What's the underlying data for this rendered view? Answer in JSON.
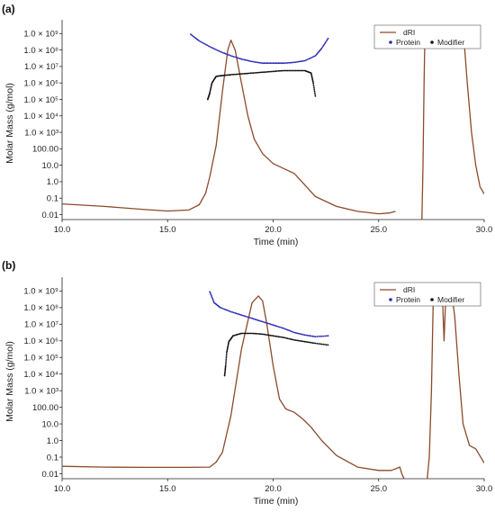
{
  "chart_data": [
    {
      "type": "line",
      "panel_label": "(a)",
      "xlabel": "Time (min)",
      "ylabel": "Molar Mass (g/mol)",
      "xlim": [
        10,
        30
      ],
      "ylim_log10": [
        -2.3,
        9.4
      ],
      "x_ticks": [
        "10.0",
        "15.0",
        "20.0",
        "25.0",
        "30.0"
      ],
      "x_tick_values": [
        10,
        15,
        20,
        25,
        30
      ],
      "y_ticks": [
        "0.01",
        "0.1",
        "1.0",
        "10.0",
        "100.00",
        "1.0 × 10³",
        "1.0 × 10⁴",
        "1.0 × 10⁵",
        "1.0 × 10⁶",
        "1.0 × 10⁷",
        "1.0 × 10⁸",
        "1.0 × 10⁹"
      ],
      "y_tick_log10": [
        -2,
        -1,
        0,
        1,
        2,
        3,
        4,
        5,
        6,
        7,
        8,
        9
      ],
      "legend": {
        "position": "top-right",
        "line_label": "dRI",
        "dot_labels": [
          "Protein",
          "Modifier"
        ]
      },
      "colors": {
        "dRI": "#8b4a2b",
        "Protein": "#2a2ab8",
        "Modifier": "#111111"
      },
      "series": [
        {
          "name": "dRI",
          "kind": "line",
          "x": [
            10,
            12,
            14,
            15,
            16,
            16.5,
            16.8,
            17,
            17.3,
            17.6,
            17.85,
            18,
            18.2,
            18.5,
            18.8,
            19.1,
            19.5,
            20,
            20.5,
            21,
            21.5,
            22,
            23,
            24,
            25,
            25.5,
            25.8
          ],
          "y_log10": [
            -1.35,
            -1.5,
            -1.7,
            -1.78,
            -1.72,
            -1.4,
            -0.7,
            0.3,
            2.2,
            5.5,
            8.0,
            8.6,
            8.0,
            6.0,
            4.0,
            2.6,
            1.7,
            1.1,
            0.8,
            0.5,
            -0.2,
            -0.9,
            -1.5,
            -1.8,
            -1.95,
            -1.9,
            -1.8
          ]
        },
        {
          "name": "dRI",
          "kind": "line",
          "x": [
            27.05,
            27.1,
            27.15,
            27.2,
            27.3,
            28.9,
            29.0,
            29.2,
            29.4,
            29.6,
            29.8,
            30.0
          ],
          "y_log10": [
            -2.3,
            1.0,
            6.0,
            9.4,
            9.4,
            9.4,
            9.4,
            6.0,
            3.0,
            1.0,
            -0.3,
            -0.75
          ]
        },
        {
          "name": "Protein",
          "kind": "dots",
          "x": [
            16.1,
            16.5,
            17,
            17.5,
            18,
            18.5,
            19,
            19.5,
            20,
            20.5,
            21,
            21.5,
            22,
            22.3,
            22.6
          ],
          "y_log10": [
            8.95,
            8.55,
            8.2,
            7.9,
            7.65,
            7.45,
            7.3,
            7.2,
            7.2,
            7.2,
            7.25,
            7.35,
            7.65,
            8.1,
            8.7
          ]
        },
        {
          "name": "Modifier",
          "kind": "dots",
          "x": [
            16.9,
            17,
            17.1,
            17.3,
            17.6,
            18,
            18.5,
            19,
            19.5,
            20,
            20.5,
            21,
            21.5,
            21.8,
            21.9,
            22.0
          ],
          "y_log10": [
            5.0,
            5.4,
            6.0,
            6.4,
            6.45,
            6.5,
            6.55,
            6.6,
            6.65,
            6.7,
            6.75,
            6.75,
            6.75,
            6.6,
            6.0,
            5.2
          ]
        }
      ]
    },
    {
      "type": "line",
      "panel_label": "(b)",
      "xlabel": "Time (min)",
      "ylabel": "Molar Mass (g/mol)",
      "xlim": [
        10,
        30
      ],
      "ylim_log10": [
        -2.3,
        9.4
      ],
      "x_ticks": [
        "10.0",
        "15.0",
        "20.0",
        "25.0",
        "30.0"
      ],
      "x_tick_values": [
        10,
        15,
        20,
        25,
        30
      ],
      "y_ticks": [
        "0.01",
        "0.1",
        "1.0",
        "10.0",
        "100.00",
        "1.0 × 10³",
        "1.0 × 10⁴",
        "1.0 × 10⁵",
        "1.0 × 10⁶",
        "1.0 × 10⁷",
        "1.0 × 10⁸",
        "1.0 × 10⁹"
      ],
      "y_tick_log10": [
        -2,
        -1,
        0,
        1,
        2,
        3,
        4,
        5,
        6,
        7,
        8,
        9
      ],
      "legend": {
        "position": "top-right",
        "line_label": "dRI",
        "dot_labels": [
          "Protein",
          "Modifier"
        ]
      },
      "colors": {
        "dRI": "#8b4a2b",
        "Protein": "#2a2ab8",
        "Modifier": "#111111"
      },
      "series": [
        {
          "name": "dRI",
          "kind": "line",
          "x": [
            10,
            12,
            14,
            16,
            17,
            17.3,
            17.6,
            18,
            18.5,
            19,
            19.3,
            19.5,
            19.7,
            20,
            20.3,
            20.6,
            21,
            21.4,
            21.8,
            22.3,
            23,
            24,
            25,
            25.6,
            26,
            26.1,
            26.2
          ],
          "y_log10": [
            -1.55,
            -1.6,
            -1.62,
            -1.62,
            -1.6,
            -1.3,
            -0.7,
            1.5,
            5.5,
            8.3,
            8.7,
            8.4,
            7.0,
            4.5,
            2.5,
            1.9,
            1.7,
            1.3,
            0.8,
            0.0,
            -0.9,
            -1.6,
            -1.8,
            -1.8,
            -1.6,
            -2.0,
            -2.3
          ]
        },
        {
          "name": "dRI",
          "kind": "line",
          "x": [
            27.3,
            27.4,
            27.5,
            27.6,
            28.0,
            28.1,
            28.2,
            28.4,
            28.6,
            28.8,
            29.0,
            29.3,
            29.6,
            30.0
          ],
          "y_log10": [
            -2.3,
            -1.0,
            3.0,
            9.4,
            9.4,
            6.0,
            9.4,
            9.4,
            7.5,
            4.0,
            1.0,
            -0.3,
            -0.5,
            -1.35
          ]
        },
        {
          "name": "Protein",
          "kind": "dots",
          "x": [
            17,
            17.2,
            17.5,
            18,
            18.5,
            19,
            19.5,
            20,
            20.5,
            21,
            21.5,
            22,
            22.6
          ],
          "y_log10": [
            8.95,
            8.3,
            8.0,
            7.75,
            7.55,
            7.35,
            7.15,
            6.95,
            6.75,
            6.5,
            6.35,
            6.25,
            6.3
          ]
        },
        {
          "name": "Modifier",
          "kind": "dots",
          "x": [
            17.7,
            17.75,
            17.8,
            17.9,
            18.1,
            18.5,
            19,
            19.5,
            20,
            20.5,
            21,
            21.5,
            22,
            22.6
          ],
          "y_log10": [
            3.9,
            4.5,
            5.3,
            5.95,
            6.3,
            6.45,
            6.45,
            6.4,
            6.3,
            6.2,
            6.05,
            5.95,
            5.85,
            5.75
          ]
        }
      ]
    }
  ]
}
